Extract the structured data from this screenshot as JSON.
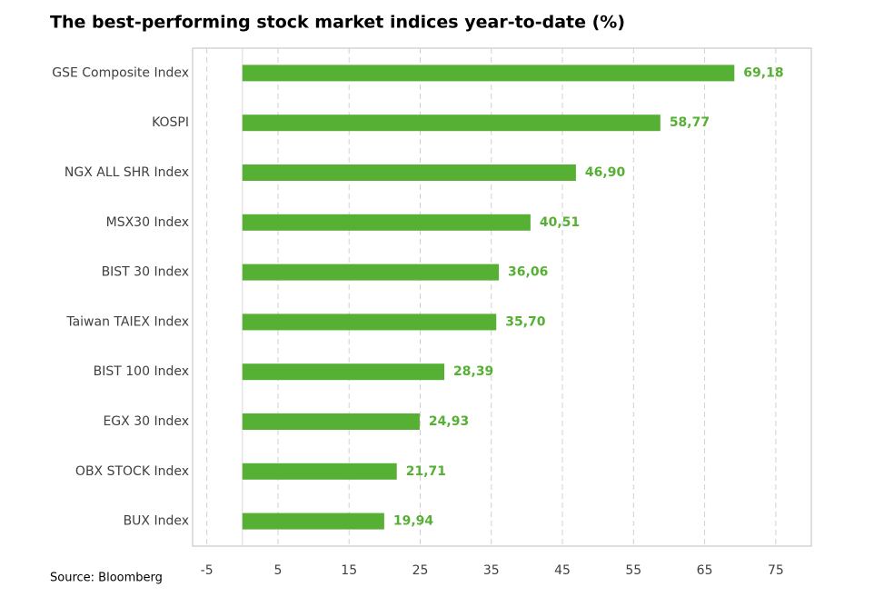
{
  "chart_data": {
    "type": "bar",
    "orientation": "horizontal",
    "title": "The best-performing stock market indices year-to-date (%)",
    "source": "Source: Bloomberg",
    "categories": [
      "GSE Composite Index",
      "KOSPI",
      "NGX ALL SHR Index",
      "MSX30 Index",
      "BIST 30 Index",
      "Taiwan TAIEX Index",
      "BIST 100 Index",
      "EGX 30 Index",
      "OBX STOCK Index",
      "BUX Index"
    ],
    "values": [
      69.18,
      58.77,
      46.9,
      40.51,
      36.06,
      35.7,
      28.39,
      24.93,
      21.71,
      19.94
    ],
    "value_labels": [
      "69,18",
      "58,77",
      "46,90",
      "40,51",
      "36,06",
      "35,70",
      "28,39",
      "24,93",
      "21,71",
      "19,94"
    ],
    "color": "#56b033",
    "xlim": [
      -7,
      80
    ],
    "xticks": [
      -5,
      5,
      15,
      25,
      35,
      45,
      55,
      65,
      75
    ],
    "grid": true
  }
}
